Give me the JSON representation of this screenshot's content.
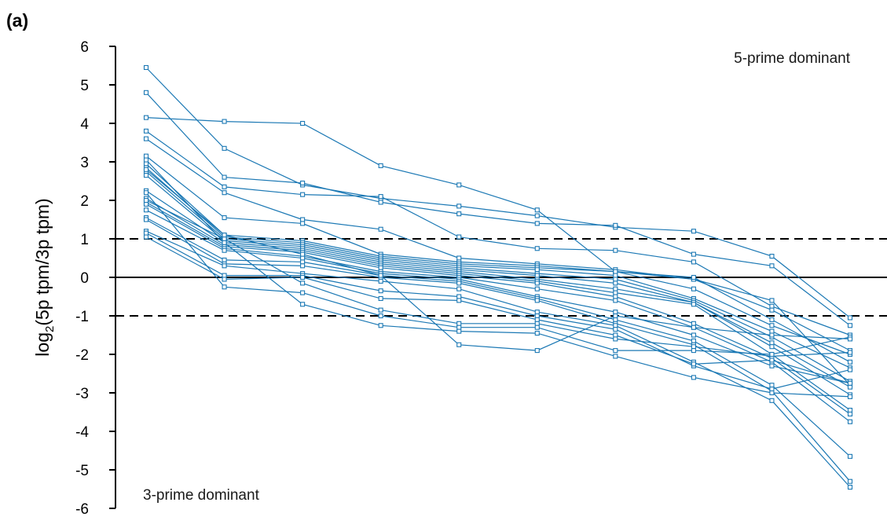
{
  "chart_data": {
    "type": "line",
    "panel_label": "(a)",
    "ylabel": {
      "main": "log",
      "sub": "2",
      "rest": "(5p tpm/3p tpm)"
    },
    "xlabel": "",
    "ylim": [
      -6,
      6
    ],
    "yticks": [
      "6",
      "5",
      "4",
      "3",
      "2",
      "1",
      "0",
      "-1",
      "-2",
      "-3",
      "-4",
      "-5",
      "-6"
    ],
    "ytick_values": [
      6,
      5,
      4,
      3,
      2,
      1,
      0,
      -1,
      -2,
      -3,
      -4,
      -5,
      -6
    ],
    "x": [
      1,
      2,
      3,
      4,
      5,
      6,
      7,
      8,
      9,
      10
    ],
    "reference_lines": {
      "solid": [
        0
      ],
      "dashed": [
        1,
        -1
      ]
    },
    "annotations": {
      "top_right": "5-prime dominant",
      "bottom_left": "3-prime dominant"
    },
    "series_color": "#1b78b4",
    "series": [
      {
        "values": [
          5.45,
          3.35,
          2.4,
          2.05,
          1.85,
          1.6,
          1.3,
          1.2,
          0.55,
          -1.05
        ]
      },
      {
        "values": [
          4.8,
          2.6,
          2.45,
          1.95,
          1.65,
          1.4,
          1.35,
          0.6,
          0.3,
          -1.25
        ]
      },
      {
        "values": [
          4.15,
          4.05,
          4.0,
          2.9,
          2.4,
          1.75,
          0.15,
          -0.05,
          -0.6,
          -2.8
        ]
      },
      {
        "values": [
          3.8,
          2.35,
          2.15,
          2.1,
          1.05,
          0.75,
          0.7,
          0.4,
          -0.75,
          -1.5
        ]
      },
      {
        "values": [
          3.6,
          2.2,
          1.5,
          1.25,
          0.5,
          0.35,
          0.2,
          -0.05,
          -0.85,
          -1.9
        ]
      },
      {
        "values": [
          3.15,
          1.55,
          1.4,
          0.6,
          0.4,
          0.3,
          0.15,
          0.0,
          -1.1,
          -2.2
        ]
      },
      {
        "values": [
          2.95,
          1.1,
          0.95,
          0.55,
          0.35,
          0.25,
          0.15,
          -0.3,
          -1.25,
          -2.0
        ]
      },
      {
        "values": [
          2.85,
          1.05,
          0.9,
          0.5,
          0.3,
          0.2,
          0.05,
          -0.55,
          -1.4,
          -2.35
        ]
      },
      {
        "values": [
          2.75,
          1.0,
          0.85,
          0.45,
          0.25,
          0.1,
          -0.05,
          -0.6,
          -1.55,
          -2.7
        ]
      },
      {
        "values": [
          2.65,
          0.95,
          0.8,
          0.4,
          0.2,
          0.05,
          -0.15,
          -0.65,
          -1.7,
          -2.85
        ]
      },
      {
        "values": [
          2.25,
          0.9,
          0.75,
          0.35,
          0.15,
          -0.05,
          -0.3,
          -0.65,
          -1.8,
          -3.05
        ]
      },
      {
        "values": [
          2.05,
          0.85,
          0.7,
          0.3,
          0.1,
          -0.1,
          -0.4,
          -0.7,
          -2.0,
          -3.45
        ]
      },
      {
        "values": [
          1.95,
          0.8,
          0.65,
          0.25,
          0.05,
          -0.15,
          -0.5,
          -1.2,
          -2.1,
          -3.55
        ]
      },
      {
        "values": [
          1.9,
          0.75,
          0.55,
          0.15,
          0.0,
          -0.3,
          -0.6,
          -1.3,
          -2.2,
          -3.75
        ]
      },
      {
        "values": [
          1.75,
          0.7,
          0.5,
          0.1,
          -0.05,
          -0.5,
          -0.9,
          -1.5,
          -2.3,
          -2.75
        ]
      },
      {
        "values": [
          1.55,
          0.45,
          0.4,
          0.05,
          -0.1,
          -0.55,
          -1.1,
          -1.65,
          -2.8,
          -4.65
        ]
      },
      {
        "values": [
          1.5,
          0.35,
          0.3,
          0.0,
          -0.15,
          -0.6,
          -1.2,
          -1.75,
          -2.95,
          -5.3
        ]
      },
      {
        "values": [
          1.2,
          0.3,
          0.1,
          -0.1,
          -0.3,
          -0.9,
          -1.25,
          -2.2,
          -3.2,
          -5.45
        ]
      },
      {
        "values": [
          1.15,
          0.05,
          0.05,
          -0.35,
          -0.5,
          -1.0,
          -1.35,
          -2.3,
          -2.9,
          -2.4
        ]
      },
      {
        "values": [
          1.05,
          -0.05,
          0.0,
          -0.55,
          -0.6,
          -1.1,
          -1.5,
          -2.25,
          -2.15,
          -2.75
        ]
      },
      {
        "values": [
          2.0,
          1.0,
          -0.15,
          -0.85,
          -1.2,
          -1.2,
          -1.6,
          -1.8,
          -2.05,
          -1.95
        ]
      },
      {
        "values": [
          2.2,
          -0.25,
          -0.4,
          -1.0,
          -1.3,
          -1.3,
          -1.9,
          -1.9,
          -2.0,
          -1.55
        ]
      },
      {
        "values": [
          3.05,
          0.9,
          -0.7,
          -1.25,
          -1.4,
          -1.45,
          -2.05,
          -2.6,
          -3.0,
          -3.1
        ]
      },
      {
        "values": [
          2.8,
          1.1,
          0.6,
          0.05,
          -1.75,
          -1.9,
          -1.0,
          -1.3,
          -1.5,
          -1.6
        ]
      }
    ]
  }
}
